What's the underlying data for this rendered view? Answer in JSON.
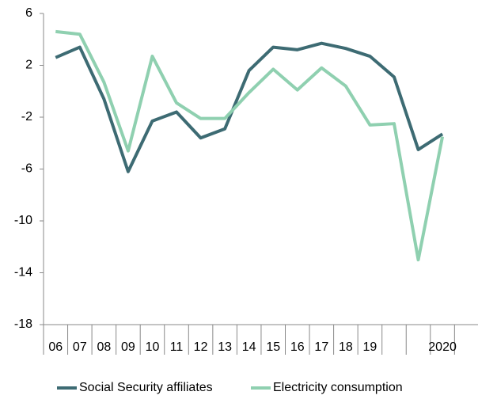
{
  "chart_data": {
    "type": "line",
    "categories": [
      "06",
      "07",
      "08",
      "09",
      "10",
      "11",
      "12",
      "13",
      "14",
      "15",
      "16",
      "17",
      "18",
      "19",
      null,
      null,
      "2020"
    ],
    "series": [
      {
        "name": "Social Security affiliates",
        "color": "#3d6b73",
        "values": [
          2.6,
          3.4,
          -0.6,
          -6.2,
          -2.3,
          -1.6,
          -3.6,
          -2.9,
          1.6,
          3.4,
          3.2,
          3.7,
          3.3,
          2.7,
          1.1,
          -4.5,
          -3.3
        ]
      },
      {
        "name": "Electricity consumption",
        "color": "#8fd0b0",
        "values": [
          4.6,
          4.4,
          0.7,
          -4.6,
          2.7,
          -0.9,
          -2.1,
          -2.1,
          -0.1,
          1.7,
          0.1,
          1.8,
          0.4,
          -2.6,
          -2.5,
          -13.0,
          -3.5
        ]
      }
    ],
    "ylim": [
      -18,
      6
    ],
    "yticks": [
      6,
      2,
      -2,
      -6,
      -10,
      -14,
      -18
    ],
    "grid": false,
    "legend": "bottom"
  }
}
